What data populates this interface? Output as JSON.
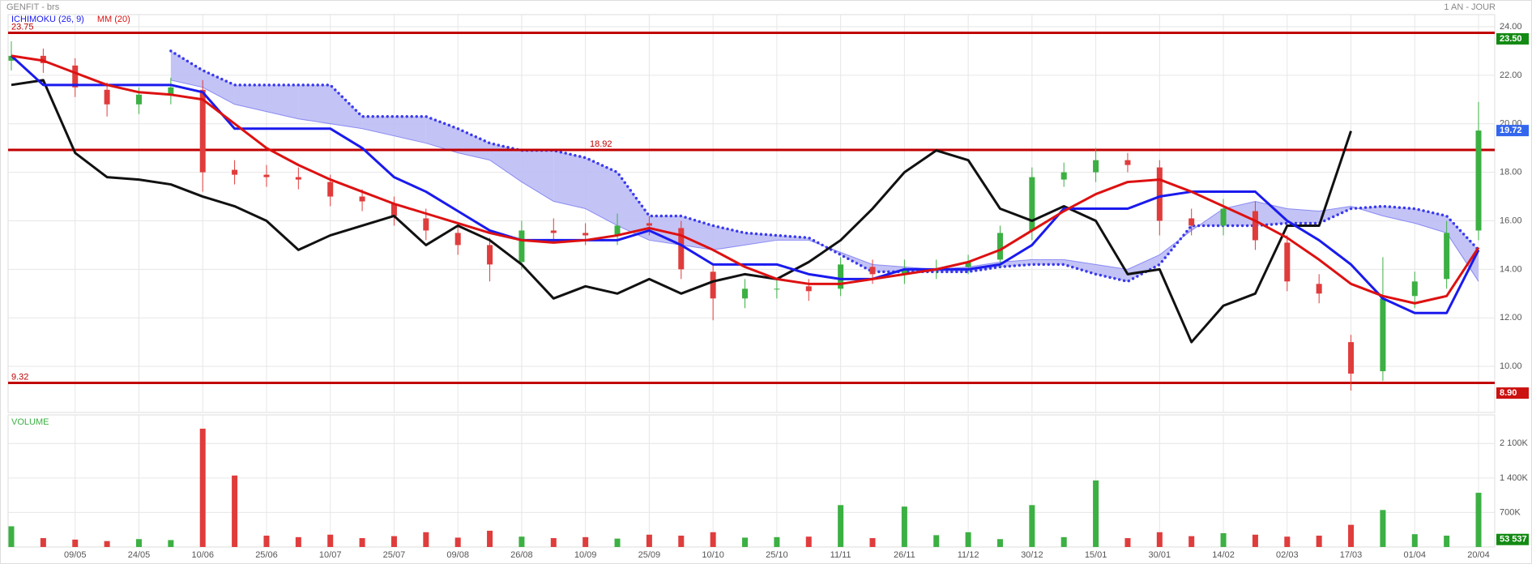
{
  "chart_data": {
    "type": "candlestick",
    "title": "GENFIT - brs",
    "period": "1 AN - JOUR",
    "categories": [
      null,
      null,
      "09/05",
      null,
      "24/05",
      null,
      "10/06",
      null,
      "25/06",
      null,
      "10/07",
      null,
      "25/07",
      null,
      "09/08",
      null,
      "26/08",
      null,
      "10/09",
      null,
      "25/09",
      null,
      "10/10",
      null,
      "25/10",
      null,
      "11/11",
      null,
      "26/11",
      null,
      "11/12",
      null,
      "30/12",
      null,
      "15/01",
      null,
      "30/01",
      null,
      "14/02",
      null,
      "02/03",
      null,
      "17/03",
      null,
      "01/04",
      null,
      "20/04"
    ],
    "open": [
      22.6,
      22.8,
      22.4,
      21.4,
      20.8,
      21.2,
      21.4,
      18.1,
      17.9,
      17.8,
      17.6,
      17.0,
      16.7,
      16.1,
      15.5,
      15.0,
      14.3,
      15.6,
      15.5,
      15.4,
      15.9,
      15.7,
      13.9,
      12.8,
      13.2,
      13.3,
      13.2,
      14.1,
      13.8,
      14.0,
      14.1,
      14.4,
      15.6,
      17.7,
      18.0,
      18.5,
      18.2,
      16.1,
      15.8,
      16.4,
      15.1,
      13.4,
      11.0,
      9.8,
      12.9,
      13.6,
      15.6
    ],
    "high": [
      23.4,
      23.1,
      22.7,
      21.7,
      21.5,
      21.9,
      21.8,
      18.5,
      18.3,
      18.2,
      17.9,
      17.3,
      17.0,
      16.5,
      15.9,
      15.3,
      16.0,
      16.1,
      15.9,
      16.3,
      16.2,
      16.0,
      14.2,
      13.6,
      13.6,
      13.6,
      14.5,
      14.4,
      14.4,
      14.4,
      14.6,
      15.8,
      18.2,
      18.4,
      19.0,
      18.8,
      18.5,
      16.5,
      16.9,
      16.8,
      15.4,
      13.8,
      11.3,
      14.5,
      13.9,
      16.0,
      20.9
    ],
    "low": [
      22.2,
      22.1,
      21.1,
      20.3,
      20.4,
      20.8,
      17.2,
      17.5,
      17.4,
      17.3,
      16.6,
      16.4,
      15.8,
      15.2,
      14.6,
      13.5,
      14.0,
      15.1,
      15.0,
      15.0,
      15.4,
      13.6,
      11.9,
      12.4,
      12.8,
      12.7,
      12.9,
      13.4,
      13.4,
      13.6,
      13.8,
      14.1,
      15.2,
      17.4,
      17.6,
      18.0,
      15.4,
      15.4,
      15.4,
      14.8,
      13.1,
      12.6,
      9.0,
      9.4,
      12.4,
      13.2,
      15.2
    ],
    "close": [
      22.8,
      22.5,
      21.5,
      20.8,
      21.2,
      21.5,
      18.0,
      17.9,
      17.8,
      17.7,
      17.0,
      16.8,
      16.2,
      15.6,
      15.0,
      14.2,
      15.6,
      15.5,
      15.4,
      15.8,
      15.8,
      14.0,
      12.8,
      13.2,
      13.2,
      13.1,
      14.2,
      13.8,
      14.0,
      14.0,
      14.3,
      15.5,
      17.8,
      18.0,
      18.5,
      18.3,
      16.0,
      15.8,
      16.5,
      15.2,
      13.5,
      13.0,
      9.7,
      12.8,
      13.5,
      15.5,
      19.72
    ],
    "up_color": "#3cb043",
    "down_color": "#e03c3c",
    "series": [
      {
        "name": "ICHIMOKU (26, 9)",
        "color": "#1a1aee",
        "values": [
          22.8,
          21.6,
          21.6,
          21.6,
          21.6,
          21.6,
          21.3,
          19.8,
          19.8,
          19.8,
          19.8,
          19.0,
          17.8,
          17.2,
          16.4,
          15.6,
          15.2,
          15.2,
          15.2,
          15.2,
          15.6,
          15.0,
          14.2,
          14.2,
          14.2,
          13.8,
          13.6,
          13.6,
          14.0,
          14.0,
          14.0,
          14.2,
          15.0,
          16.5,
          16.5,
          16.5,
          17.0,
          17.2,
          17.2,
          17.2,
          16.0,
          15.2,
          14.2,
          12.8,
          12.2,
          12.2,
          14.8
        ]
      },
      {
        "name": "MM (20)",
        "color": "#dd1111",
        "values": [
          22.8,
          22.6,
          22.1,
          21.6,
          21.3,
          21.2,
          21.0,
          20.0,
          19.0,
          18.3,
          17.7,
          17.2,
          16.7,
          16.3,
          15.9,
          15.5,
          15.2,
          15.1,
          15.2,
          15.4,
          15.7,
          15.4,
          14.8,
          14.1,
          13.6,
          13.4,
          13.4,
          13.6,
          13.8,
          14.0,
          14.3,
          14.8,
          15.6,
          16.4,
          17.1,
          17.6,
          17.7,
          17.2,
          16.6,
          16.0,
          15.3,
          14.4,
          13.4,
          12.9,
          12.6,
          12.9,
          14.9
        ]
      }
    ],
    "cloud": {
      "color": "#b8b8f4",
      "line_color": "#3a3aee",
      "span_a": [
        null,
        null,
        null,
        null,
        null,
        21.8,
        21.5,
        20.8,
        20.5,
        20.2,
        20.0,
        19.8,
        19.5,
        19.2,
        18.8,
        18.5,
        17.6,
        16.8,
        16.5,
        15.8,
        15.2,
        15.0,
        14.8,
        15.0,
        15.2,
        15.2,
        14.7,
        14.2,
        14.1,
        14.0,
        14.1,
        14.3,
        14.4,
        14.4,
        14.2,
        14.0,
        14.6,
        15.6,
        16.5,
        16.8,
        16.5,
        16.4,
        16.6,
        16.2,
        15.9,
        15.5,
        13.5
      ],
      "span_b": [
        null,
        null,
        null,
        null,
        null,
        23.0,
        22.2,
        21.6,
        21.6,
        21.6,
        21.6,
        20.3,
        20.3,
        20.3,
        19.8,
        19.2,
        18.9,
        18.9,
        18.6,
        18.0,
        16.2,
        16.2,
        15.8,
        15.5,
        15.4,
        15.3,
        14.6,
        13.9,
        13.9,
        13.9,
        13.9,
        14.1,
        14.2,
        14.2,
        13.8,
        13.5,
        14.2,
        15.8,
        15.8,
        15.8,
        15.9,
        15.9,
        16.5,
        16.6,
        16.5,
        16.2,
        14.8
      ]
    },
    "lagging": {
      "color": "#111111",
      "values": [
        21.6,
        21.8,
        18.8,
        17.8,
        17.7,
        17.5,
        17.0,
        16.6,
        16.0,
        14.8,
        15.4,
        15.8,
        16.2,
        15.0,
        15.8,
        15.2,
        14.2,
        12.8,
        13.3,
        13.0,
        13.6,
        13.0,
        13.5,
        13.8,
        13.6,
        14.3,
        15.2,
        16.5,
        18.0,
        18.9,
        18.5,
        16.5,
        16.0,
        16.6,
        16.0,
        13.8,
        14.0,
        11.0,
        12.5,
        13.0,
        15.8,
        15.8,
        19.7,
        null,
        null,
        null,
        null
      ]
    },
    "levels": [
      23.75,
      18.92,
      9.32
    ],
    "level_color": "#c00000",
    "badges": [
      {
        "value": 23.5,
        "label": "23.50",
        "color": "#138a13"
      },
      {
        "value": 19.72,
        "label": "19.72",
        "color": "#3366ee"
      },
      {
        "value": 8.9,
        "label": "8.90",
        "color": "#cc1111"
      }
    ],
    "ylim": [
      8.1,
      24.5
    ],
    "yticks": [
      {
        "value": 10,
        "label": "10.00"
      },
      {
        "value": 12,
        "label": "12.00"
      },
      {
        "value": 14,
        "label": "14.00"
      },
      {
        "value": 16,
        "label": "16.00"
      },
      {
        "value": 18,
        "label": "18.00"
      },
      {
        "value": 20,
        "label": "20.00"
      },
      {
        "value": 22,
        "label": "22.00"
      },
      {
        "value": 24,
        "label": "24.00"
      }
    ],
    "grid": true,
    "volume": {
      "title": "VOLUME",
      "values": [
        420000,
        180000,
        150000,
        120000,
        160000,
        140000,
        2400000,
        1450000,
        230000,
        200000,
        250000,
        180000,
        220000,
        300000,
        190000,
        330000,
        210000,
        180000,
        200000,
        170000,
        250000,
        230000,
        300000,
        190000,
        200000,
        210000,
        850000,
        180000,
        820000,
        240000,
        300000,
        160000,
        850000,
        200000,
        1350000,
        180000,
        300000,
        220000,
        280000,
        250000,
        210000,
        230000,
        450000,
        750000,
        260000,
        230000,
        1100000
      ],
      "ylim": [
        0,
        2680000
      ],
      "yticks": [
        {
          "value": 700000,
          "label": "700K"
        },
        {
          "value": 1400000,
          "label": "1 400K"
        },
        {
          "value": 2100000,
          "label": "2 100K"
        }
      ],
      "badge": {
        "value": 53537,
        "label": "53 537",
        "color": "#138a13"
      }
    }
  }
}
